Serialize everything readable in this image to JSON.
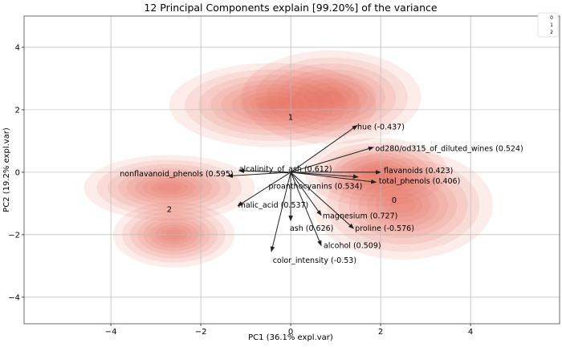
{
  "chart_data": {
    "type": "scatter",
    "subtype": "pca-biplot-with-density-contours",
    "title": "12 Principal Components explain [99.20%] of the variance",
    "xlabel": "PC1 (36.1% expl.var)",
    "ylabel": "PC2 (19.2% expl.var)",
    "xlim": [
      -5.93,
      5.98
    ],
    "ylim": [
      -4.85,
      5.0
    ],
    "xticks": [
      -4,
      -2,
      0,
      2,
      4
    ],
    "yticks": [
      -4,
      -2,
      0,
      2,
      4
    ],
    "grid": true,
    "legend": {
      "placement": "top-right",
      "entries": [
        "0",
        "1",
        "2"
      ]
    },
    "density_color": "#e8604f",
    "arrow_color": "#222222",
    "clusters": [
      {
        "label": "0",
        "x": 2.3,
        "y": -0.9
      },
      {
        "label": "1",
        "x": 0.0,
        "y": 1.75
      },
      {
        "label": "2",
        "x": -2.7,
        "y": -1.2
      }
    ],
    "density_peaks": [
      {
        "x": -0.4,
        "y": 2.15,
        "sx": 2.3,
        "sy": 1.35
      },
      {
        "x": 0.9,
        "y": 2.4,
        "sx": 2.0,
        "sy": 1.5
      },
      {
        "x": 2.5,
        "y": -1.05,
        "sx": 2.0,
        "sy": 1.75
      },
      {
        "x": 1.9,
        "y": 0.0,
        "sx": 1.6,
        "sy": 1.1
      },
      {
        "x": -2.7,
        "y": -0.5,
        "sx": 1.9,
        "sy": 1.05
      },
      {
        "x": -2.6,
        "y": -2.0,
        "sx": 1.35,
        "sy": 1.05
      }
    ],
    "loadings": [
      {
        "label": "hue (-0.437)",
        "x": 1.48,
        "y": 1.5,
        "lx": 1.48,
        "ly": 1.45,
        "anchor": "start"
      },
      {
        "label": "od280/od315_of_diluted_wines (0.524)",
        "x": 1.84,
        "y": 0.8,
        "lx": 1.88,
        "ly": 0.75,
        "anchor": "start"
      },
      {
        "label": "flavanoids (0.423)",
        "x": 2.0,
        "y": 0.0,
        "lx": 2.07,
        "ly": 0.05,
        "anchor": "start"
      },
      {
        "label": "total_phenols (0.406)",
        "x": 1.9,
        "y": -0.32,
        "lx": 1.96,
        "ly": -0.28,
        "anchor": "start"
      },
      {
        "label": "proanthocyanins (0.534)",
        "x": 1.5,
        "y": -0.15,
        "lx": 0.55,
        "ly": -0.45,
        "anchor": "middle"
      },
      {
        "label": "alcalinity_of_ash (0.612)",
        "x": -1.15,
        "y": 0.05,
        "lx": -1.15,
        "ly": 0.1,
        "anchor": "start"
      },
      {
        "label": "nonflavanoid_phenols (0.595)",
        "x": -1.4,
        "y": -0.12,
        "lx": -3.8,
        "ly": -0.05,
        "anchor": "start"
      },
      {
        "label": "malic_acid (0.537)",
        "x": -1.18,
        "y": -1.08,
        "lx": -1.17,
        "ly": -1.05,
        "anchor": "start"
      },
      {
        "label": "magnesium (0.727)",
        "x": 0.68,
        "y": -1.38,
        "lx": 0.71,
        "ly": -1.4,
        "anchor": "start"
      },
      {
        "label": "ash (0.626)",
        "x": 0.0,
        "y": -1.55,
        "lx": -0.02,
        "ly": -1.8,
        "anchor": "start"
      },
      {
        "label": "proline (-0.576)",
        "x": 1.4,
        "y": -1.8,
        "lx": 1.43,
        "ly": -1.8,
        "anchor": "start"
      },
      {
        "label": "alcohol (0.509)",
        "x": 0.68,
        "y": -2.35,
        "lx": 0.73,
        "ly": -2.35,
        "anchor": "start"
      },
      {
        "label": "color_intensity (-0.53)",
        "x": -0.43,
        "y": -2.54,
        "lx": -0.4,
        "ly": -2.82,
        "anchor": "start"
      }
    ]
  }
}
